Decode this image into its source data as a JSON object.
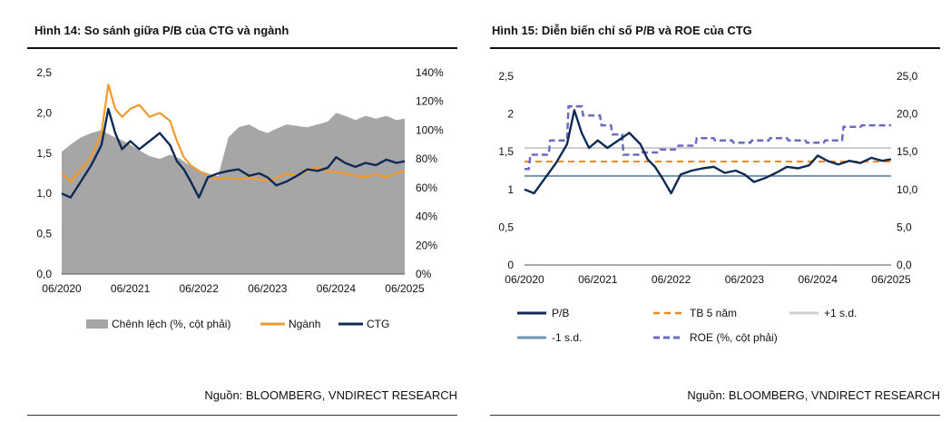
{
  "figures": [
    {
      "title": "Hình 14: So sánh giữa P/B của CTG và ngành",
      "source": "Nguồn: BLOOMBERG, VNDIRECT RESEARCH"
    },
    {
      "title": "Hình 15: Diễn biến chỉ số P/B và ROE của CTG",
      "source": "Nguồn: BLOOMBERG, VNDIRECT RESEARCH"
    }
  ],
  "chart_data": [
    {
      "type": "area",
      "title": "Hình 14: So sánh giữa P/B của CTG và ngành",
      "x_ticks": [
        "06/2020",
        "06/2021",
        "06/2022",
        "06/2023",
        "06/2024",
        "06/2025"
      ],
      "y_left": {
        "ticks": [
          "0,0",
          "0,5",
          "1,0",
          "1,5",
          "2,0",
          "2,5"
        ],
        "values": [
          0,
          0.5,
          1.0,
          1.5,
          2.0,
          2.5
        ],
        "range": [
          0,
          2.5
        ]
      },
      "y_right": {
        "ticks": [
          "0%",
          "20%",
          "40%",
          "60%",
          "80%",
          "100%",
          "120%",
          "140%"
        ],
        "values": [
          0,
          20,
          40,
          60,
          80,
          100,
          120,
          140
        ],
        "range": [
          0,
          140
        ]
      },
      "x_range": [
        2020.42,
        2025.42
      ],
      "colors": {
        "chenh_lech": "#a6a6a6",
        "nganh": "#f29a2e",
        "ctg": "#0f2a55"
      },
      "series": [
        {
          "name": "Chênh lệch (%, cột phải)",
          "axis": "right",
          "style": "area",
          "x": [
            2020.42,
            2020.55,
            2020.7,
            2020.85,
            2021.0,
            2021.15,
            2021.3,
            2021.42,
            2021.55,
            2021.7,
            2021.85,
            2022.0,
            2022.15,
            2022.3,
            2022.42,
            2022.55,
            2022.7,
            2022.85,
            2023.0,
            2023.15,
            2023.3,
            2023.42,
            2023.55,
            2023.7,
            2023.85,
            2024.0,
            2024.15,
            2024.3,
            2024.42,
            2024.55,
            2024.7,
            2024.85,
            2025.0,
            2025.15,
            2025.3,
            2025.42
          ],
          "y": [
            85,
            90,
            95,
            98,
            100,
            96,
            93,
            90,
            86,
            82,
            80,
            83,
            80,
            75,
            72,
            70,
            68,
            95,
            102,
            104,
            100,
            98,
            101,
            104,
            103,
            102,
            104,
            106,
            112,
            110,
            107,
            110,
            108,
            110,
            107,
            108
          ]
        },
        {
          "name": "Ngành",
          "axis": "left",
          "style": "line",
          "x": [
            2020.42,
            2020.55,
            2020.7,
            2020.85,
            2021.0,
            2021.1,
            2021.2,
            2021.3,
            2021.42,
            2021.55,
            2021.7,
            2021.85,
            2022.0,
            2022.1,
            2022.2,
            2022.3,
            2022.42,
            2022.55,
            2022.7,
            2022.85,
            2023.0,
            2023.15,
            2023.3,
            2023.42,
            2023.55,
            2023.7,
            2023.85,
            2024.0,
            2024.15,
            2024.3,
            2024.42,
            2024.55,
            2024.7,
            2024.85,
            2025.0,
            2025.15,
            2025.3,
            2025.42
          ],
          "y": [
            1.25,
            1.15,
            1.3,
            1.45,
            1.75,
            2.35,
            2.05,
            1.95,
            2.05,
            2.1,
            1.95,
            2.0,
            1.9,
            1.65,
            1.45,
            1.35,
            1.28,
            1.22,
            1.18,
            1.2,
            1.18,
            1.2,
            1.17,
            1.16,
            1.19,
            1.25,
            1.22,
            1.28,
            1.33,
            1.27,
            1.27,
            1.25,
            1.22,
            1.2,
            1.24,
            1.2,
            1.25,
            1.28
          ]
        },
        {
          "name": "CTG",
          "axis": "left",
          "style": "line",
          "x": [
            2020.42,
            2020.55,
            2020.7,
            2020.85,
            2021.0,
            2021.1,
            2021.2,
            2021.3,
            2021.42,
            2021.55,
            2021.7,
            2021.85,
            2022.0,
            2022.1,
            2022.2,
            2022.3,
            2022.42,
            2022.55,
            2022.7,
            2022.85,
            2023.0,
            2023.15,
            2023.3,
            2023.42,
            2023.55,
            2023.7,
            2023.85,
            2024.0,
            2024.15,
            2024.3,
            2024.42,
            2024.55,
            2024.7,
            2024.85,
            2025.0,
            2025.15,
            2025.3,
            2025.42
          ],
          "y": [
            1.0,
            0.95,
            1.15,
            1.35,
            1.6,
            2.05,
            1.75,
            1.55,
            1.65,
            1.55,
            1.65,
            1.75,
            1.6,
            1.4,
            1.3,
            1.15,
            0.95,
            1.2,
            1.25,
            1.28,
            1.3,
            1.22,
            1.25,
            1.2,
            1.1,
            1.15,
            1.22,
            1.3,
            1.28,
            1.32,
            1.45,
            1.38,
            1.33,
            1.38,
            1.35,
            1.42,
            1.38,
            1.4
          ]
        }
      ],
      "legend": [
        "Chênh lệch (%, cột phải)",
        "Ngành",
        "CTG"
      ]
    },
    {
      "type": "line",
      "title": "Hình 15: Diễn biến chỉ số P/B và ROE của CTG",
      "x_ticks": [
        "06/2020",
        "06/2021",
        "06/2022",
        "06/2023",
        "06/2024",
        "06/2025"
      ],
      "y_left": {
        "ticks": [
          "0",
          "0,5",
          "1",
          "1,5",
          "2",
          "2,5"
        ],
        "values": [
          0,
          0.5,
          1,
          1.5,
          2,
          2.5
        ],
        "range": [
          0,
          2.5
        ]
      },
      "y_right": {
        "ticks": [
          "0,0",
          "5,0",
          "10,0",
          "15,0",
          "20,0",
          "25,0"
        ],
        "values": [
          0,
          5,
          10,
          15,
          20,
          25
        ],
        "range": [
          0,
          25
        ]
      },
      "x_range": [
        2020.42,
        2025.42
      ],
      "colors": {
        "pb": "#0f2a55",
        "tb5": "#ee8a1f",
        "plus1": "#cfcfcf",
        "minus1": "#6f95a8",
        "roe": "#6b6bc4"
      },
      "series": [
        {
          "name": "P/B",
          "axis": "left",
          "style": "solid",
          "x": [
            2020.42,
            2020.55,
            2020.7,
            2020.85,
            2021.0,
            2021.1,
            2021.2,
            2021.3,
            2021.42,
            2021.55,
            2021.7,
            2021.85,
            2022.0,
            2022.1,
            2022.2,
            2022.3,
            2022.42,
            2022.55,
            2022.7,
            2022.85,
            2023.0,
            2023.15,
            2023.3,
            2023.42,
            2023.55,
            2023.7,
            2023.85,
            2024.0,
            2024.15,
            2024.3,
            2024.42,
            2024.55,
            2024.7,
            2024.85,
            2025.0,
            2025.15,
            2025.3,
            2025.42
          ],
          "y": [
            1.0,
            0.95,
            1.15,
            1.35,
            1.6,
            2.05,
            1.75,
            1.55,
            1.65,
            1.55,
            1.65,
            1.75,
            1.6,
            1.4,
            1.3,
            1.15,
            0.95,
            1.2,
            1.25,
            1.28,
            1.3,
            1.22,
            1.25,
            1.2,
            1.1,
            1.15,
            1.22,
            1.3,
            1.28,
            1.32,
            1.45,
            1.38,
            1.33,
            1.38,
            1.35,
            1.42,
            1.38,
            1.4
          ]
        },
        {
          "name": "TB 5 năm",
          "axis": "left",
          "style": "dashed",
          "x": [
            2020.42,
            2025.42
          ],
          "y": [
            1.37,
            1.37
          ]
        },
        {
          "name": "+1 s.d.",
          "axis": "left",
          "style": "solid",
          "x": [
            2020.42,
            2025.42
          ],
          "y": [
            1.55,
            1.55
          ]
        },
        {
          "name": "-1 s.d.",
          "axis": "left",
          "style": "solid",
          "x": [
            2020.42,
            2025.42
          ],
          "y": [
            1.18,
            1.18
          ]
        },
        {
          "name": "ROE (%, cột phải)",
          "axis": "right",
          "style": "dashed",
          "x": [
            2020.42,
            2020.48,
            2020.5,
            2020.75,
            2020.77,
            2021.0,
            2021.02,
            2021.2,
            2021.22,
            2021.45,
            2021.47,
            2021.6,
            2021.62,
            2021.75,
            2021.77,
            2022.0,
            2022.02,
            2022.25,
            2022.27,
            2022.5,
            2022.52,
            2022.75,
            2022.77,
            2023.0,
            2023.02,
            2023.25,
            2023.27,
            2023.5,
            2023.52,
            2023.75,
            2023.77,
            2024.0,
            2024.02,
            2024.25,
            2024.27,
            2024.5,
            2024.52,
            2024.75,
            2024.77,
            2025.0,
            2025.02,
            2025.42
          ],
          "y": [
            12.7,
            12.7,
            14.6,
            14.6,
            16.5,
            16.5,
            21.0,
            21.0,
            19.8,
            19.8,
            18.5,
            18.5,
            17.3,
            17.3,
            14.6,
            14.6,
            14.9,
            14.9,
            15.3,
            15.3,
            15.8,
            15.8,
            16.8,
            16.8,
            16.5,
            16.5,
            16.2,
            16.2,
            16.5,
            16.5,
            16.8,
            16.8,
            16.5,
            16.5,
            16.2,
            16.2,
            16.5,
            16.5,
            18.3,
            18.3,
            18.5,
            18.5
          ]
        }
      ],
      "legend": [
        "P/B",
        "TB 5 năm",
        "+1 s.d.",
        "-1 s.d.",
        "ROE (%, cột phải)"
      ]
    }
  ]
}
